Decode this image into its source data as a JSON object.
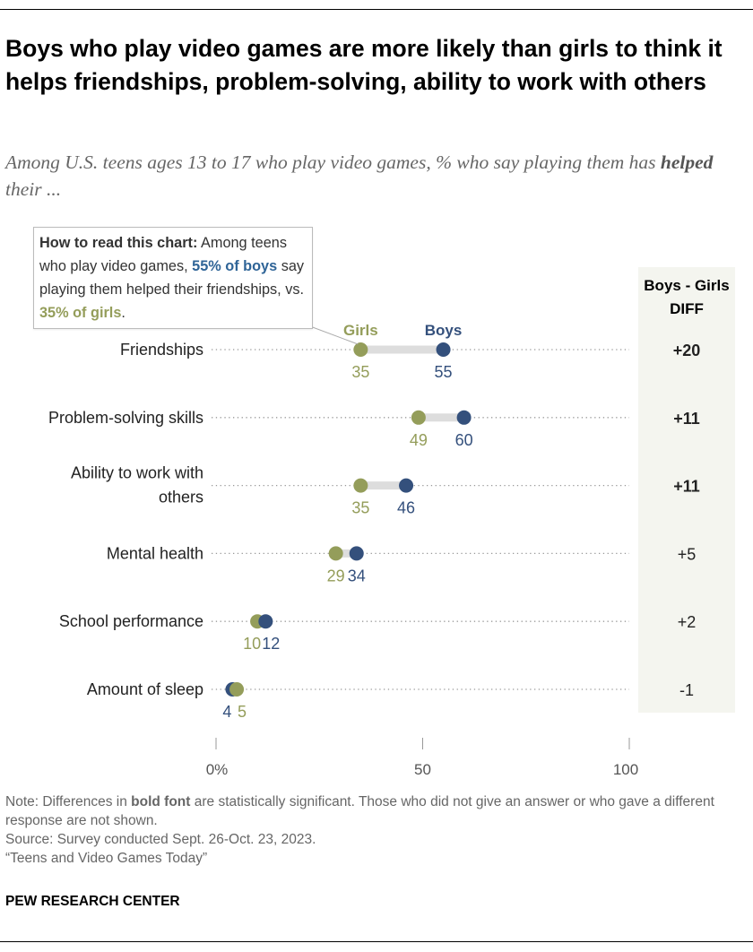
{
  "title": "Boys who play video games are more likely than girls to think it helps friendships, problem-solving, ability to work with others",
  "subtitle_pre": "Among U.S. teens ages 13 to 17 who play video games, % who say playing them has ",
  "subtitle_bold": "helped",
  "subtitle_post": " their ...",
  "how_to_read": {
    "lead": "How to read this chart:",
    "t1": " Among teens who play video games, ",
    "boys": "55% of boys",
    "t2": " say playing them helped their friendships, vs. ",
    "girls": "35% of girls",
    "t3": "."
  },
  "chart_data": {
    "type": "dot",
    "categories": [
      "Friendships",
      "Problem-solving skills",
      "Ability to work with others",
      "Mental health",
      "School performance",
      "Amount of sleep"
    ],
    "series": [
      {
        "name": "Girls",
        "values": [
          35,
          49,
          35,
          29,
          10,
          5
        ],
        "color": "#949d5a"
      },
      {
        "name": "Boys",
        "values": [
          55,
          60,
          46,
          34,
          12,
          4
        ],
        "color": "#34507c"
      }
    ],
    "diff_header": "Boys - Girls DIFF",
    "diff": [
      "+20",
      "+11",
      "+11",
      "+5",
      "+2",
      "-1"
    ],
    "diff_significant": [
      true,
      true,
      true,
      false,
      false,
      false
    ],
    "xlim": [
      0,
      100
    ],
    "xticks": [
      0,
      50,
      100
    ],
    "xtick_labels": [
      "0%",
      "50",
      "100"
    ]
  },
  "notes": {
    "note": "Note: Differences in ",
    "note_bold": "bold font",
    "note_rest": " are statistically significant. Those who did not give an answer or who gave a different response are not shown.",
    "source": "Source: Survey conducted Sept. 26-Oct. 23, 2023.",
    "report": "“Teens and Video Games Today”"
  },
  "brand": "PEW RESEARCH CENTER"
}
